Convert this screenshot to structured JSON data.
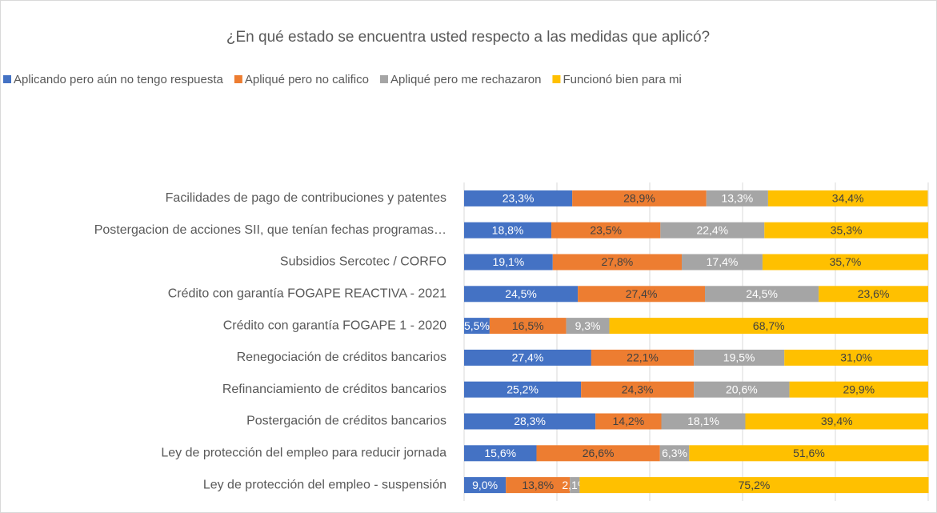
{
  "chart_data": {
    "type": "stacked_bar_horizontal",
    "title": "¿En qué estado se encuentra usted respecto a las medidas que aplicó?",
    "categories": [
      "Facilidades de pago de contribuciones y patentes",
      "Postergacion de acciones SII, que tenían fechas programas…",
      "Subsidios Sercotec / CORFO",
      "Crédito con garantía FOGAPE REACTIVA - 2021",
      "Crédito con garantía FOGAPE 1 - 2020",
      "Renegociación de créditos bancarios",
      "Refinanciamiento de créditos bancarios",
      "Postergación de créditos bancarios",
      "Ley de protección del empleo para reducir jornada",
      "Ley de protección del empleo - suspensión"
    ],
    "series": [
      {
        "name": "Aplicando pero aún no tengo respuesta",
        "color": "#4472c4",
        "values": [
          23.3,
          18.8,
          19.1,
          24.5,
          5.5,
          27.4,
          25.2,
          28.3,
          15.6,
          9.0
        ],
        "value_labels": [
          "23,3%",
          "18,8%",
          "19,1%",
          "24,5%",
          "5,5%",
          "27,4%",
          "25,2%",
          "28,3%",
          "15,6%",
          "9,0%"
        ]
      },
      {
        "name": "Apliqué pero no califico",
        "color": "#ed7d31",
        "values": [
          28.9,
          23.5,
          27.8,
          27.4,
          16.5,
          22.1,
          24.3,
          14.2,
          26.6,
          13.8
        ],
        "value_labels": [
          "28,9%",
          "23,5%",
          "27,8%",
          "27,4%",
          "16,5%",
          "22,1%",
          "24,3%",
          "14,2%",
          "26,6%",
          "13,8%"
        ]
      },
      {
        "name": "Apliqué pero me rechazaron",
        "color": "#a5a5a5",
        "values": [
          13.3,
          22.4,
          17.4,
          24.5,
          9.3,
          19.5,
          20.6,
          18.1,
          6.3,
          2.1
        ],
        "value_labels": [
          "13,3%",
          "22,4%",
          "17,4%",
          "24,5%",
          "9,3%",
          "19,5%",
          "20,6%",
          "18,1%",
          "6,3%",
          "2,1%"
        ]
      },
      {
        "name": "Funcionó bien para mi",
        "color": "#ffc000",
        "values": [
          34.4,
          35.3,
          35.7,
          23.6,
          68.7,
          31.0,
          29.9,
          39.4,
          51.6,
          75.2
        ],
        "value_labels": [
          "34,4%",
          "35,3%",
          "35,7%",
          "23,6%",
          "68,7%",
          "31,0%",
          "29,9%",
          "39,4%",
          "51,6%",
          "75,2%"
        ]
      }
    ],
    "xlim": [
      0,
      100
    ],
    "xticks": [
      0,
      20,
      40,
      60,
      80,
      100
    ],
    "grid": true
  }
}
